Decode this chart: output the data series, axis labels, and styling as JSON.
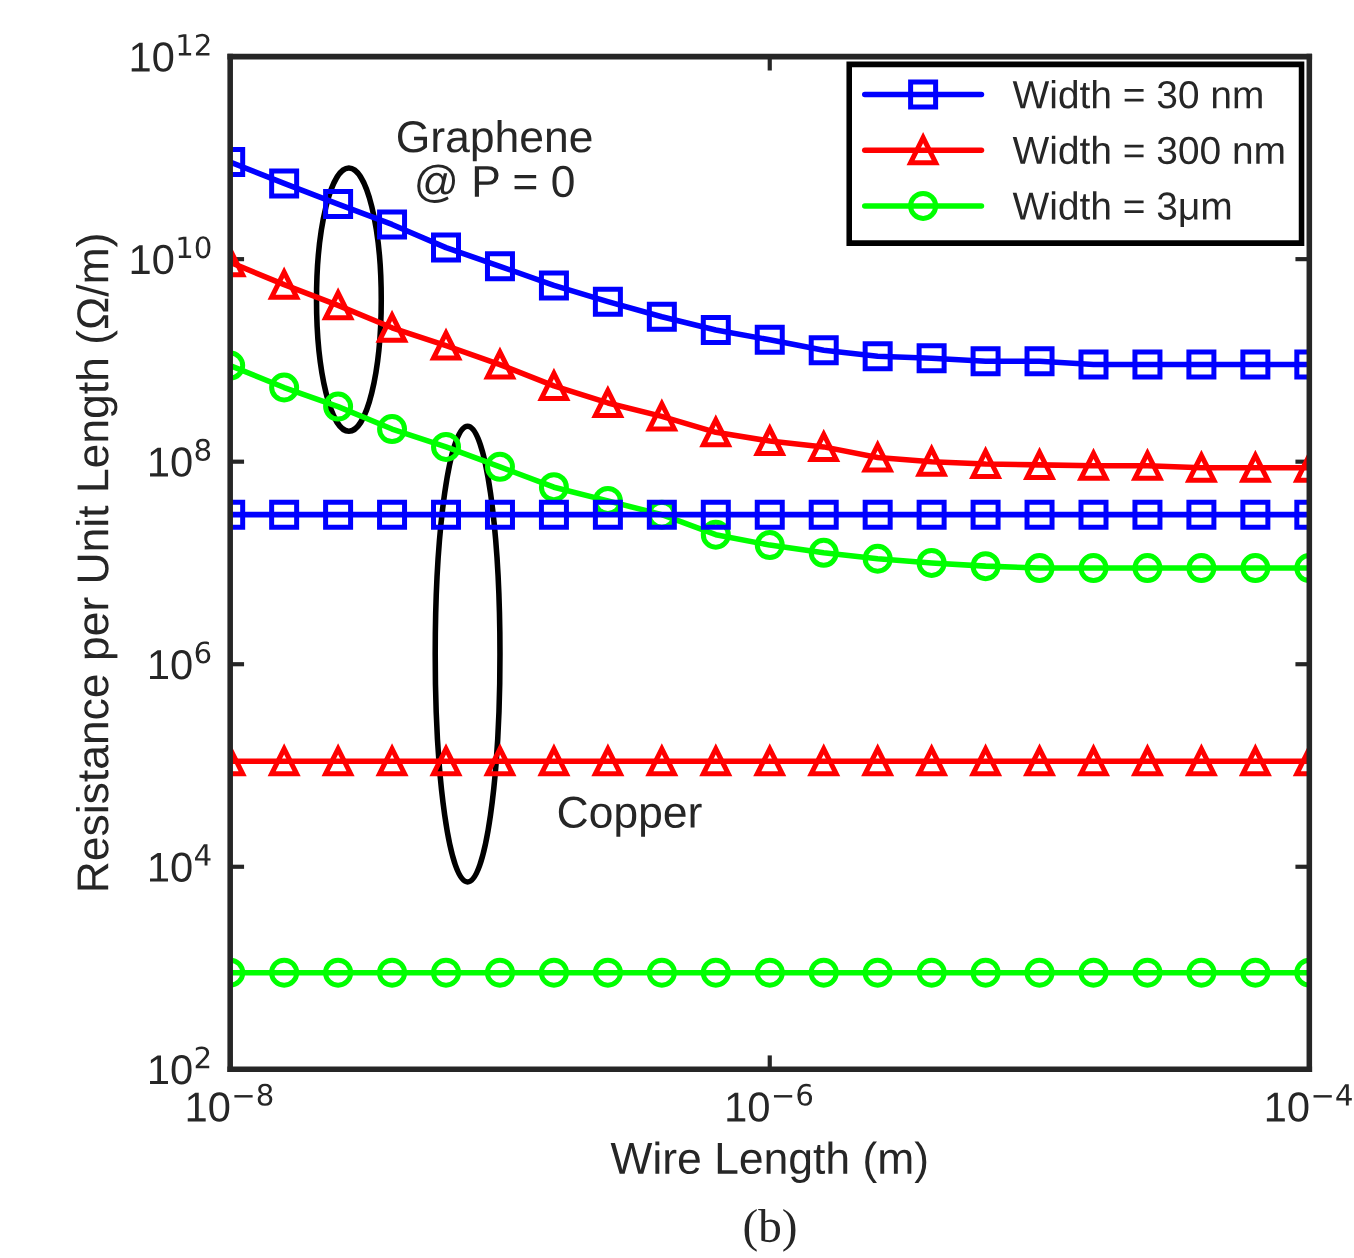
{
  "chart_data": {
    "type": "line",
    "xlabel": "Wire Length (m)",
    "ylabel": "Resistance per Unit Length (Ω/m)",
    "x": [
      1e-08,
      1.585e-08,
      2.512e-08,
      3.981e-08,
      6.31e-08,
      1e-07,
      1.585e-07,
      2.512e-07,
      3.981e-07,
      6.31e-07,
      1e-06,
      1.585e-06,
      2.512e-06,
      3.981e-06,
      6.31e-06,
      1e-05,
      1.585e-05,
      2.512e-05,
      3.981e-05,
      6.31e-05,
      0.0001
    ],
    "series": [
      {
        "name": "Width = 30 nm",
        "color": "#0000ff",
        "marker": "square",
        "values": [
          91000000000.0,
          56000000000.0,
          35000000000.0,
          22000000000.0,
          13000000000.0,
          8500000000.0,
          5500000000.0,
          3800000000.0,
          2700000000.0,
          2000000000.0,
          1600000000.0,
          1260000000.0,
          1100000000.0,
          1050000000.0,
          980000000.0,
          980000000.0,
          910000000.0,
          910000000.0,
          910000000.0,
          910000000.0,
          910000000.0
        ]
      },
      {
        "name": "Width = 300 nm",
        "color": "#ff0000",
        "marker": "triangle",
        "values": [
          9300000000.0,
          5600000000.0,
          3500000000.0,
          2100000000.0,
          1400000000.0,
          910000000.0,
          560000000.0,
          380000000.0,
          280000000.0,
          195000000.0,
          160000000.0,
          140000000.0,
          110000000.0,
          100000000.0,
          95000000.0,
          93000000.0,
          91000000.0,
          91000000.0,
          87000000.0,
          87000000.0,
          87000000.0
        ]
      },
      {
        "name": "Width = 3μm",
        "color": "#00ff00",
        "marker": "circle",
        "values": [
          890000000.0,
          540000000.0,
          350000000.0,
          210000000.0,
          140000000.0,
          89000000.0,
          56000000.0,
          41000000.0,
          30000000.0,
          19000000.0,
          15000000.0,
          12600000.0,
          11000000.0,
          10000000.0,
          9300000.0,
          8900000.0,
          8900000.0,
          8900000.0,
          8900000.0,
          8900000.0,
          8900000.0
        ]
      },
      {
        "color": "#0000ff",
        "marker": "square",
        "values": [
          30000000.0,
          30000000.0,
          30000000.0,
          30000000.0,
          30000000.0,
          30000000.0,
          30000000.0,
          30000000.0,
          30000000.0,
          30000000.0,
          30000000.0,
          30000000.0,
          30000000.0,
          30000000.0,
          30000000.0,
          30000000.0,
          30000000.0,
          30000000.0,
          30000000.0,
          30000000.0,
          30000000.0
        ]
      },
      {
        "color": "#ff0000",
        "marker": "triangle",
        "values": [
          110000.0,
          110000.0,
          110000.0,
          110000.0,
          110000.0,
          110000.0,
          110000.0,
          110000.0,
          110000.0,
          110000.0,
          110000.0,
          110000.0,
          110000.0,
          110000.0,
          110000.0,
          110000.0,
          110000.0,
          110000.0,
          110000.0,
          110000.0,
          110000.0
        ]
      },
      {
        "color": "#00ff00",
        "marker": "circle",
        "values": [
          900,
          900,
          900,
          900,
          900,
          900,
          900,
          900,
          900,
          900,
          900,
          900,
          900,
          900,
          900,
          900,
          900,
          900,
          900,
          900,
          900
        ]
      }
    ],
    "log": "xy",
    "xlim": [
      1e-08,
      0.0001
    ],
    "ylim": [
      100,
      1000000000000.0
    ],
    "xticks": [
      {
        "value": 1e-08,
        "label": "10$^{−8}$"
      },
      {
        "value": 1e-06,
        "label": "10$^{−6}$"
      },
      {
        "value": 0.0001,
        "label": "10$^{−4}$"
      }
    ],
    "yticks": [
      {
        "value": 100,
        "label": "10$^{2}$"
      },
      {
        "value": 10000.0,
        "label": "10$^{4}$"
      },
      {
        "value": 1000000.0,
        "label": "10$^{6}$"
      },
      {
        "value": 100000000.0,
        "label": "10$^{8}$"
      },
      {
        "value": 10000000000.0,
        "label": "10$^{10}$"
      },
      {
        "value": 1000000000000.0,
        "label": "10$^{12}$"
      }
    ],
    "grid": false,
    "legend": "top right",
    "annotations": [
      "Graphene\n@ P = 0",
      "Copper",
      "(b)"
    ]
  }
}
